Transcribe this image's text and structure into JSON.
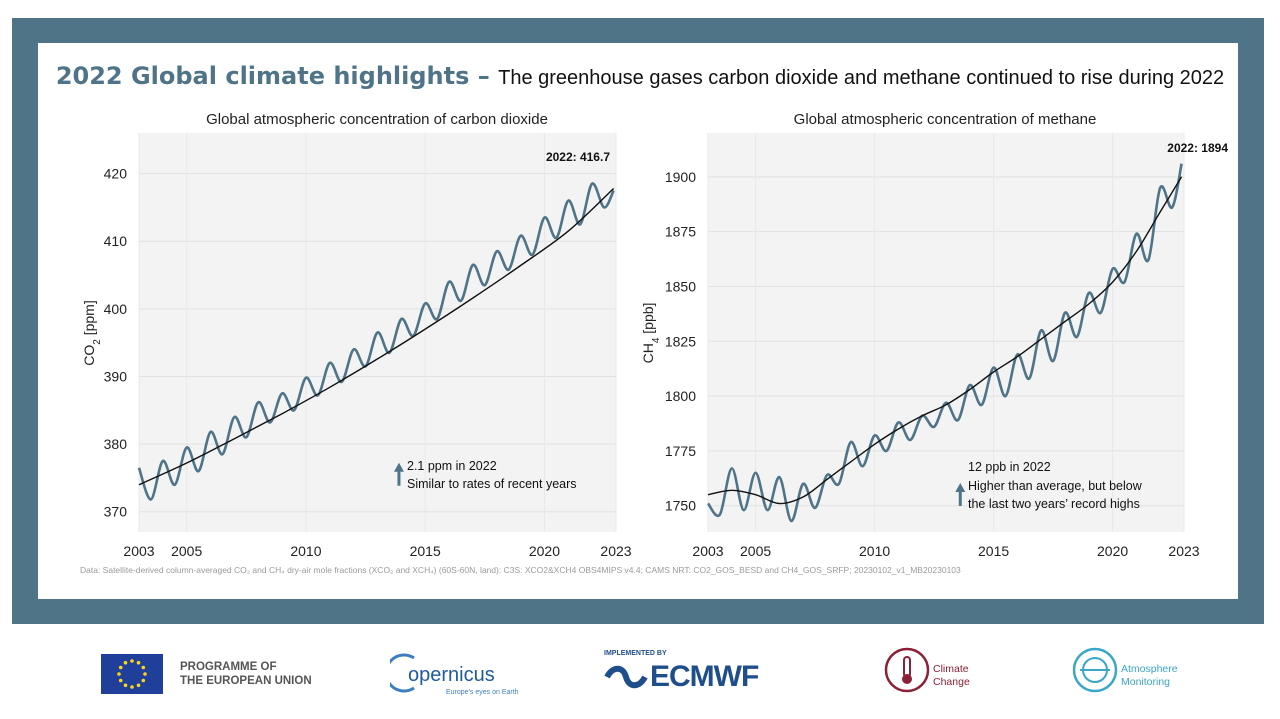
{
  "headline": {
    "main": "2022 Global climate highlights",
    "separator": " – ",
    "sub": "The greenhouse gases carbon dioxide and methane continued to rise during 2022"
  },
  "colors": {
    "frame": "#4f7488",
    "monthly_line": "#4f7488",
    "trend_line": "#111111",
    "plot_bg": "#f3f3f3"
  },
  "data_note": "Data: Satellite-derived column-averaged CO₂ and CH₄ dry-air mole fractions (XCO₂ and XCH₄) (60S-60N, land): C3S: XCO2&XCH4 OBS4MIPS v4.4; CAMS NRT: CO2_GOS_BESD and CH4_GOS_SRFP; 20230102_v1_MB20230103",
  "chart_data": [
    {
      "type": "line",
      "title": "Global atmospheric concentration of carbon dioxide",
      "ylabel": "CO₂ [ppm]",
      "ylabel_main": "CO",
      "ylabel_sub": "2",
      "ylabel_unit": " [ppm]",
      "xlim": [
        2003,
        2023
      ],
      "ylim": [
        367,
        426
      ],
      "x_ticks": [
        2003,
        2005,
        2010,
        2015,
        2020,
        2023
      ],
      "x_tick_labels": [
        "2003",
        "2005",
        "2010",
        "2015",
        "2020",
        "2023"
      ],
      "y_ticks": [
        370,
        380,
        390,
        400,
        410,
        420
      ],
      "y_tick_labels": [
        "370",
        "380",
        "390",
        "400",
        "410",
        "420"
      ],
      "end_label": "2022: 416.7",
      "annotation": {
        "arrow_x": 2013.9,
        "arrow_y": 376.8,
        "lines": [
          "2.1 ppm in 2022",
          "Similar to rates of recent years"
        ]
      },
      "series": [
        {
          "name": "Monthly mean",
          "x": [
            2003.0,
            2003.5,
            2004.0,
            2004.5,
            2005.0,
            2005.5,
            2006.0,
            2006.5,
            2007.0,
            2007.5,
            2008.0,
            2008.5,
            2009.0,
            2009.5,
            2010.0,
            2010.5,
            2011.0,
            2011.5,
            2012.0,
            2012.5,
            2013.0,
            2013.5,
            2014.0,
            2014.5,
            2015.0,
            2015.5,
            2016.0,
            2016.5,
            2017.0,
            2017.5,
            2018.0,
            2018.5,
            2019.0,
            2019.5,
            2020.0,
            2020.5,
            2021.0,
            2021.5,
            2022.0,
            2022.5,
            2022.9
          ],
          "values": [
            376.5,
            371.8,
            377.5,
            374.0,
            379.5,
            376.0,
            381.8,
            378.5,
            384.0,
            381.0,
            386.2,
            383.2,
            387.5,
            385.0,
            389.8,
            387.2,
            392.0,
            389.2,
            394.0,
            391.5,
            396.5,
            393.5,
            398.5,
            396.0,
            400.8,
            398.5,
            404.0,
            401.2,
            406.5,
            403.5,
            408.5,
            405.8,
            410.8,
            408.0,
            413.5,
            410.5,
            416.0,
            412.5,
            418.5,
            415.0,
            417.5
          ]
        },
        {
          "name": "Trend",
          "x": [
            2003.0,
            2005.0,
            2007.0,
            2009.0,
            2011.0,
            2013.0,
            2015.0,
            2017.0,
            2019.0,
            2021.0,
            2022.9
          ],
          "values": [
            374.0,
            377.2,
            380.8,
            384.5,
            388.4,
            392.6,
            397.0,
            401.6,
            406.4,
            411.5,
            417.8
          ]
        }
      ]
    },
    {
      "type": "line",
      "title": "Global atmospheric concentration of methane",
      "ylabel": "CH₄ [ppb]",
      "ylabel_main": "CH",
      "ylabel_sub": "4",
      "ylabel_unit": " [ppb]",
      "xlim": [
        2003,
        2023
      ],
      "ylim": [
        1738,
        1920
      ],
      "x_ticks": [
        2003,
        2005,
        2010,
        2015,
        2020,
        2023
      ],
      "x_tick_labels": [
        "2003",
        "2005",
        "2010",
        "2015",
        "2020",
        "2023"
      ],
      "y_ticks": [
        1750,
        1775,
        1800,
        1825,
        1850,
        1875,
        1900
      ],
      "y_tick_labels": [
        "1750",
        "1775",
        "1800",
        "1825",
        "1850",
        "1875",
        "1900"
      ],
      "end_label": "2022: 1894",
      "annotation": {
        "arrow_x": 2013.6,
        "arrow_y": 1759,
        "lines": [
          "12 ppb in 2022",
          "Higher than average, but below",
          "the last two years’ record highs"
        ]
      },
      "series": [
        {
          "name": "Monthly mean",
          "x": [
            2003.0,
            2003.5,
            2004.0,
            2004.5,
            2005.0,
            2005.5,
            2006.0,
            2006.5,
            2007.0,
            2007.5,
            2008.0,
            2008.5,
            2009.0,
            2009.5,
            2010.0,
            2010.5,
            2011.0,
            2011.5,
            2012.0,
            2012.5,
            2013.0,
            2013.5,
            2014.0,
            2014.5,
            2015.0,
            2015.5,
            2016.0,
            2016.5,
            2017.0,
            2017.5,
            2018.0,
            2018.5,
            2019.0,
            2019.5,
            2020.0,
            2020.5,
            2021.0,
            2021.5,
            2022.0,
            2022.5,
            2022.9
          ],
          "values": [
            1751,
            1746,
            1767,
            1748,
            1765,
            1748,
            1763,
            1743,
            1760,
            1749,
            1764,
            1760,
            1779,
            1768,
            1782,
            1775,
            1788,
            1780,
            1791,
            1786,
            1797,
            1789,
            1805,
            1796,
            1813,
            1800,
            1819,
            1808,
            1830,
            1816,
            1838,
            1827,
            1847,
            1838,
            1858,
            1852,
            1874,
            1862,
            1895,
            1886,
            1906
          ]
        },
        {
          "name": "Trend",
          "x": [
            2003.0,
            2004.0,
            2005.0,
            2006.0,
            2007.0,
            2008.0,
            2009.0,
            2010.0,
            2011.0,
            2012.0,
            2013.0,
            2014.0,
            2015.0,
            2016.0,
            2017.0,
            2018.0,
            2019.0,
            2020.0,
            2021.0,
            2022.0,
            2022.9
          ],
          "values": [
            1755,
            1757,
            1755,
            1751,
            1754,
            1762,
            1770,
            1778,
            1785,
            1791,
            1796,
            1803,
            1811,
            1818,
            1826,
            1834,
            1842,
            1852,
            1866,
            1884,
            1900
          ]
        }
      ]
    }
  ],
  "footer": {
    "eu_text_line1": "PROGRAMME OF",
    "eu_text_line2": "THE EUROPEAN UNION",
    "copernicus_name": "opernicus",
    "copernicus_tag": "Europe's eyes on Earth",
    "ecmwf_small": "IMPLEMENTED BY",
    "ecmwf_name": "ECMWF",
    "climate_line1": "Climate",
    "climate_line2": "Change",
    "atmos_line1": "Atmosphere",
    "atmos_line2": "Monitoring"
  }
}
